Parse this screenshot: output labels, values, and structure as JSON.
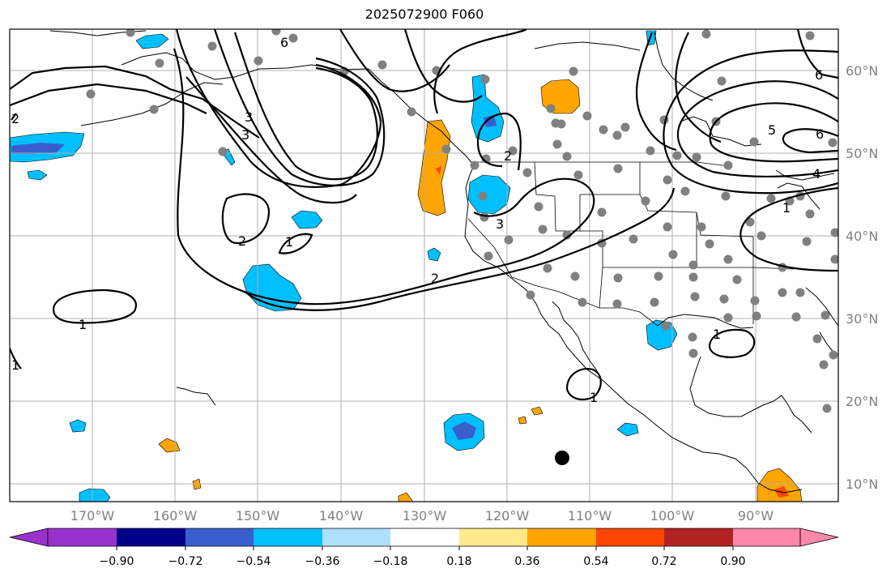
{
  "title": "2025072900 F060",
  "map": {
    "lon_labels": [
      "170°W",
      "160°W",
      "150°W",
      "140°W",
      "130°W",
      "120°W",
      "110°W",
      "100°W",
      "90°W"
    ],
    "lat_labels": [
      "60°N",
      "50°N",
      "40°N",
      "30°N",
      "20°N",
      "10°N"
    ],
    "contour_labels": [
      "1",
      "1",
      "1",
      "1",
      "1",
      "1",
      "2",
      "2",
      "2",
      "2",
      "3",
      "3",
      "3",
      "4",
      "5",
      "6",
      "6",
      "6"
    ]
  },
  "colorbar": {
    "ticks": [
      "−0.90",
      "−0.72",
      "−0.54",
      "−0.36",
      "−0.18",
      "0.18",
      "0.36",
      "0.54",
      "0.72",
      "0.90"
    ],
    "colors": [
      "#9932cc",
      "#00008b",
      "#3a5fcd",
      "#00bfff",
      "#b0e0ff",
      "#ffffff",
      "#ffe98a",
      "#ffa500",
      "#ff4500",
      "#b22222",
      "#ff88aa"
    ]
  },
  "colors": {
    "grid": "#b0b0b0",
    "coast": "#000000",
    "station": "#808080",
    "pos_shade": "#ffa500",
    "neg_shade": "#00bfff"
  }
}
